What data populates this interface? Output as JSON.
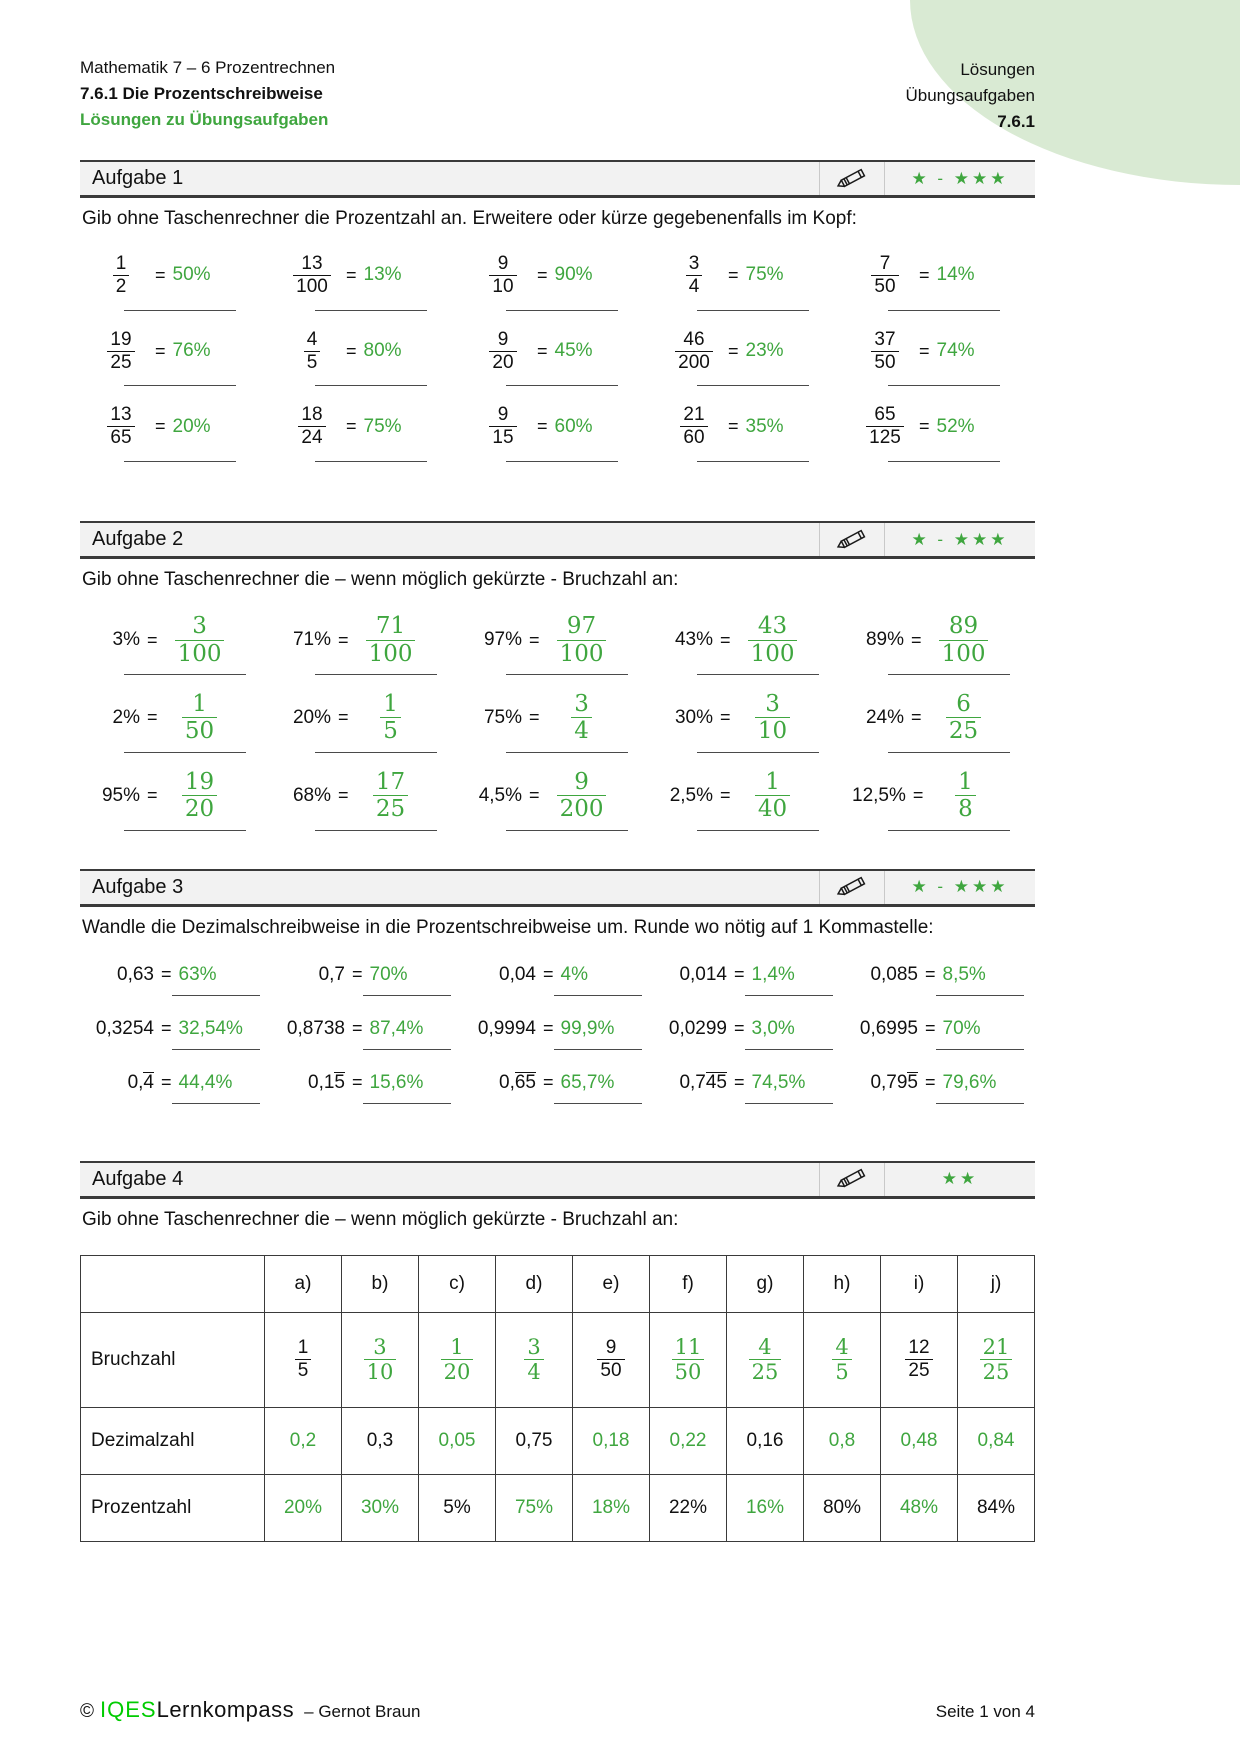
{
  "colors": {
    "accent_green": "#3fa63f",
    "footer_bright_green": "#00cc00",
    "blob_green": "#d9ead3",
    "given_black": "#111111"
  },
  "header": {
    "left": {
      "line1": "Mathematik 7 – 6 Prozentrechnen",
      "line2": "7.6.1 Die Prozentschreibweise",
      "line3": "Lösungen zu Übungsaufgaben"
    },
    "right": {
      "line1": "Lösungen",
      "line2": "Übungsaufgaben",
      "line3": "7.6.1"
    }
  },
  "tasks": [
    {
      "title": "Aufgabe 1",
      "stars": "★ - ★★★",
      "instruction": "Gib ohne Taschenrechner die Prozentzahl an. Erweitere oder kürze gegebenenfalls im Kopf:",
      "items": [
        {
          "num": "1",
          "den": "2",
          "ans": "50%"
        },
        {
          "num": "13",
          "den": "100",
          "ans": "13%"
        },
        {
          "num": "9",
          "den": "10",
          "ans": "90%"
        },
        {
          "num": "3",
          "den": "4",
          "ans": "75%"
        },
        {
          "num": "7",
          "den": "50",
          "ans": "14%"
        },
        {
          "num": "19",
          "den": "25",
          "ans": "76%"
        },
        {
          "num": "4",
          "den": "5",
          "ans": "80%"
        },
        {
          "num": "9",
          "den": "20",
          "ans": "45%"
        },
        {
          "num": "46",
          "den": "200",
          "ans": "23%"
        },
        {
          "num": "37",
          "den": "50",
          "ans": "74%"
        },
        {
          "num": "13",
          "den": "65",
          "ans": "20%"
        },
        {
          "num": "18",
          "den": "24",
          "ans": "75%"
        },
        {
          "num": "9",
          "den": "15",
          "ans": "60%"
        },
        {
          "num": "21",
          "den": "60",
          "ans": "35%"
        },
        {
          "num": "65",
          "den": "125",
          "ans": "52%"
        }
      ]
    },
    {
      "title": "Aufgabe 2",
      "stars": "★ - ★★★",
      "instruction": "Gib ohne Taschenrechner die – wenn möglich gekürzte - Bruchzahl an:",
      "items": [
        {
          "label": "3%",
          "num": "3",
          "den": "100"
        },
        {
          "label": "71%",
          "num": "71",
          "den": "100"
        },
        {
          "label": "97%",
          "num": "97",
          "den": "100"
        },
        {
          "label": "43%",
          "num": "43",
          "den": "100"
        },
        {
          "label": "89%",
          "num": "89",
          "den": "100"
        },
        {
          "label": "2%",
          "num": "1",
          "den": "50"
        },
        {
          "label": "20%",
          "num": "1",
          "den": "5"
        },
        {
          "label": "75%",
          "num": "3",
          "den": "4"
        },
        {
          "label": "30%",
          "num": "3",
          "den": "10"
        },
        {
          "label": "24%",
          "num": "6",
          "den": "25"
        },
        {
          "label": "95%",
          "num": "19",
          "den": "20"
        },
        {
          "label": "68%",
          "num": "17",
          "den": "25"
        },
        {
          "label": "4,5%",
          "num": "9",
          "den": "200"
        },
        {
          "label": "2,5%",
          "num": "1",
          "den": "40"
        },
        {
          "label": "12,5%",
          "num": "1",
          "den": "8"
        }
      ]
    },
    {
      "title": "Aufgabe 3",
      "stars": "★ - ★★★",
      "instruction": "Wandle die Dezimalschreibweise in die Prozentschreibweise um. Runde wo nötig auf 1 Kommastelle:",
      "items": [
        {
          "given": [
            {
              "t": "0,63"
            }
          ],
          "ans": "63%"
        },
        {
          "given": [
            {
              "t": "0,7"
            }
          ],
          "ans": "70%"
        },
        {
          "given": [
            {
              "t": "0,04"
            }
          ],
          "ans": "4%"
        },
        {
          "given": [
            {
              "t": "0,014"
            }
          ],
          "ans": "1,4%"
        },
        {
          "given": [
            {
              "t": "0,085"
            }
          ],
          "ans": "8,5%"
        },
        {
          "given": [
            {
              "t": "0,3254"
            }
          ],
          "ans": "32,54%"
        },
        {
          "given": [
            {
              "t": "0,8738"
            }
          ],
          "ans": "87,4%"
        },
        {
          "given": [
            {
              "t": "0,9994"
            }
          ],
          "ans": "99,9%"
        },
        {
          "given": [
            {
              "t": "0,0299"
            }
          ],
          "ans": "3,0%"
        },
        {
          "given": [
            {
              "t": "0,6995"
            }
          ],
          "ans": "70%"
        },
        {
          "given": [
            {
              "t": "0,"
            },
            {
              "t": "4",
              "over": true
            }
          ],
          "ans": "44,4%"
        },
        {
          "given": [
            {
              "t": "0,1"
            },
            {
              "t": "5",
              "over": true
            }
          ],
          "ans": "15,6%"
        },
        {
          "given": [
            {
              "t": "0,"
            },
            {
              "t": "65",
              "over": true
            }
          ],
          "ans": "65,7%"
        },
        {
          "given": [
            {
              "t": "0,7"
            },
            {
              "t": "45",
              "over": true
            }
          ],
          "ans": "74,5%"
        },
        {
          "given": [
            {
              "t": "0,79"
            },
            {
              "t": "5",
              "over": true
            }
          ],
          "ans": "79,6%"
        }
      ]
    },
    {
      "title": "Aufgabe 4",
      "stars": "★★",
      "instruction": "Gib ohne Taschenrechner die – wenn möglich gekürzte - Bruchzahl an:",
      "table": {
        "col_headers": [
          "a)",
          "b)",
          "c)",
          "d)",
          "e)",
          "f)",
          "g)",
          "h)",
          "i)",
          "j)"
        ],
        "row_labels": [
          "Bruchzahl",
          "Dezimalzahl",
          "Prozentzahl"
        ],
        "bruchzahl": [
          {
            "num": "1",
            "den": "5",
            "given": true
          },
          {
            "num": "3",
            "den": "10",
            "given": false
          },
          {
            "num": "1",
            "den": "20",
            "given": false
          },
          {
            "num": "3",
            "den": "4",
            "given": false
          },
          {
            "num": "9",
            "den": "50",
            "given": true
          },
          {
            "num": "11",
            "den": "50",
            "given": false
          },
          {
            "num": "4",
            "den": "25",
            "given": false
          },
          {
            "num": "4",
            "den": "5",
            "given": false
          },
          {
            "num": "12",
            "den": "25",
            "given": true
          },
          {
            "num": "21",
            "den": "25",
            "given": false
          }
        ],
        "dezimalzahl": [
          {
            "v": "0,2",
            "given": false
          },
          {
            "v": "0,3",
            "given": true
          },
          {
            "v": "0,05",
            "given": false
          },
          {
            "v": "0,75",
            "given": true
          },
          {
            "v": "0,18",
            "given": false
          },
          {
            "v": "0,22",
            "given": false
          },
          {
            "v": "0,16",
            "given": true
          },
          {
            "v": "0,8",
            "given": false
          },
          {
            "v": "0,48",
            "given": false
          },
          {
            "v": "0,84",
            "given": false
          }
        ],
        "prozentzahl": [
          {
            "v": "20%",
            "given": false
          },
          {
            "v": "30%",
            "given": false
          },
          {
            "v": "5%",
            "given": true
          },
          {
            "v": "75%",
            "given": false
          },
          {
            "v": "18%",
            "given": false
          },
          {
            "v": "22%",
            "given": true
          },
          {
            "v": "16%",
            "given": false
          },
          {
            "v": "80%",
            "given": true
          },
          {
            "v": "48%",
            "given": false
          },
          {
            "v": "84%",
            "given": true
          }
        ]
      }
    }
  ],
  "footer": {
    "copyright": "©",
    "brand_green": "IQES",
    "brand_black": "Lernkompass",
    "author": "– Gernot Braun",
    "page_info": "Seite 1 von 4"
  }
}
